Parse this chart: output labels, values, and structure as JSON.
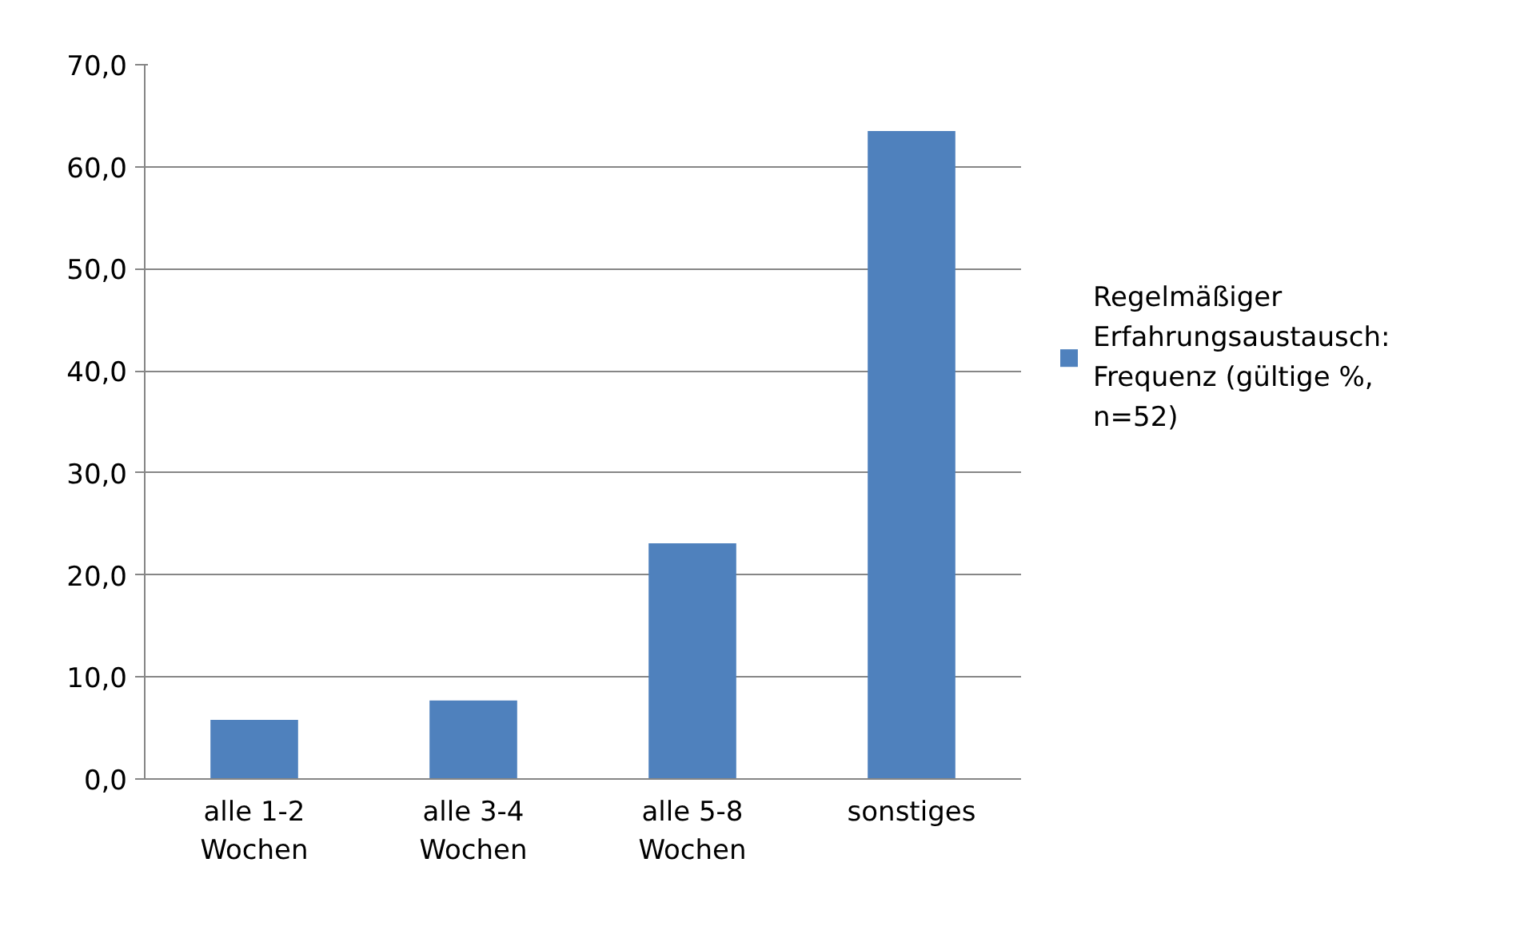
{
  "chart_data": {
    "type": "bar",
    "categories": [
      "alle 1-2 Wochen",
      "alle 3-4 Wochen",
      "alle 5-8 Wochen",
      "sonstiges"
    ],
    "series": [
      {
        "name": "Regelmäßiger Erfahrungsaustausch: Frequenz (gültige %, n=52)",
        "color": "#4f81bd",
        "values": [
          5.8,
          7.7,
          23.1,
          63.5
        ]
      }
    ],
    "ylim": [
      0,
      70
    ],
    "yticks": [
      {
        "value": 0,
        "label": "0,0"
      },
      {
        "value": 10,
        "label": "10,0"
      },
      {
        "value": 20,
        "label": "20,0"
      },
      {
        "value": 30,
        "label": "30,0"
      },
      {
        "value": 40,
        "label": "40,0"
      },
      {
        "value": 50,
        "label": "50,0"
      },
      {
        "value": 60,
        "label": "60,0"
      },
      {
        "value": 70,
        "label": "70,0"
      }
    ],
    "grid": "y",
    "legend": "right"
  }
}
